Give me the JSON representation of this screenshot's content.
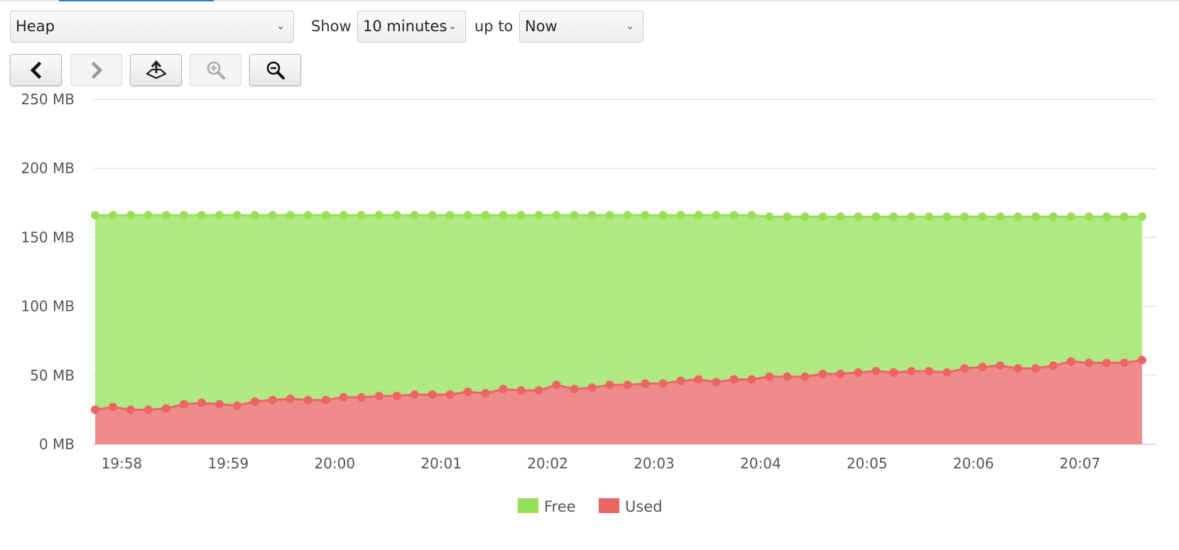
{
  "controls": {
    "metric_select": "Heap",
    "show_label": "Show",
    "range_select": "10 minutes",
    "upto_label": "up to",
    "end_select": "Now"
  },
  "toolbar": [
    {
      "name": "back-button",
      "icon": "chevron-left-icon",
      "enabled": true
    },
    {
      "name": "forward-button",
      "icon": "chevron-right-icon",
      "enabled": false
    },
    {
      "name": "export-button",
      "icon": "export-icon",
      "enabled": true
    },
    {
      "name": "zoom-in-button",
      "icon": "zoom-in-icon",
      "enabled": false
    },
    {
      "name": "zoom-out-button",
      "icon": "zoom-out-icon",
      "enabled": true
    }
  ],
  "chart_data": {
    "type": "area",
    "stacked": false,
    "x_start": "19:57:45",
    "x_step_seconds": 10,
    "x_ticks": [
      "19:58",
      "19:59",
      "20:00",
      "20:01",
      "20:02",
      "20:03",
      "20:04",
      "20:05",
      "20:06",
      "20:07"
    ],
    "y_ticks": [
      "0 MB",
      "50 MB",
      "100 MB",
      "150 MB",
      "200 MB",
      "250 MB"
    ],
    "ylim": [
      0,
      250
    ],
    "grid": "horizontal",
    "legend_position": "bottom-center",
    "series": [
      {
        "name": "Free",
        "color": "#98df58",
        "fill": "#b0e882",
        "values": [
          166,
          166,
          166,
          166,
          166,
          166,
          166,
          166,
          166,
          166,
          166,
          166,
          166,
          166,
          166,
          166,
          166,
          166,
          166,
          166,
          166,
          166,
          166,
          166,
          166,
          166,
          166,
          166,
          166,
          166,
          166,
          166,
          166,
          166,
          166,
          166,
          166,
          166,
          165,
          165,
          165,
          165,
          165,
          165,
          165,
          165,
          165,
          165,
          165,
          165,
          165,
          165,
          165,
          165,
          165,
          165,
          165,
          165,
          165,
          165
        ]
      },
      {
        "name": "Used",
        "color": "#ec6565",
        "fill": "#f08b8b",
        "values": [
          25,
          27,
          25,
          25,
          26,
          29,
          30,
          29,
          28,
          31,
          32,
          33,
          32,
          32,
          34,
          34,
          35,
          35,
          36,
          36,
          36,
          38,
          37,
          40,
          39,
          39,
          43,
          40,
          41,
          43,
          43,
          44,
          44,
          46,
          47,
          45,
          47,
          47,
          49,
          49,
          49,
          51,
          51,
          52,
          53,
          52,
          53,
          53,
          52,
          55,
          56,
          57,
          55,
          55,
          57,
          60,
          59,
          59,
          59,
          61
        ]
      }
    ]
  }
}
